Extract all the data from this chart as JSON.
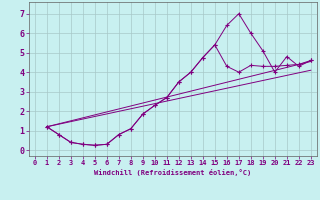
{
  "xlabel": "Windchill (Refroidissement éolien,°C)",
  "background_color": "#c8f0f0",
  "grid_color": "#a8c8c8",
  "line_color": "#800080",
  "xlim": [
    -0.5,
    23.5
  ],
  "ylim": [
    -0.3,
    7.6
  ],
  "xticks": [
    0,
    1,
    2,
    3,
    4,
    5,
    6,
    7,
    8,
    9,
    10,
    11,
    12,
    13,
    14,
    15,
    16,
    17,
    18,
    19,
    20,
    21,
    22,
    23
  ],
  "yticks": [
    0,
    1,
    2,
    3,
    4,
    5,
    6,
    7
  ],
  "series1_x": [
    1,
    2,
    3,
    4,
    5,
    6,
    7,
    8,
    9,
    10,
    11,
    12,
    13,
    14,
    15,
    16,
    17,
    18,
    19,
    20,
    21,
    22,
    23
  ],
  "series1_y": [
    1.2,
    0.8,
    0.4,
    0.3,
    0.25,
    0.3,
    0.8,
    1.1,
    1.85,
    2.3,
    2.7,
    3.5,
    4.0,
    4.75,
    5.4,
    6.4,
    7.0,
    6.0,
    5.1,
    4.0,
    4.8,
    4.3,
    4.6
  ],
  "series2_x": [
    1,
    2,
    3,
    4,
    5,
    6,
    7,
    8,
    9,
    10,
    11,
    12,
    13,
    14,
    15,
    16,
    17,
    18,
    19,
    20,
    21,
    22,
    23
  ],
  "series2_y": [
    1.2,
    0.8,
    0.4,
    0.3,
    0.25,
    0.3,
    0.8,
    1.1,
    1.85,
    2.3,
    2.7,
    3.5,
    4.0,
    4.75,
    5.4,
    4.3,
    4.0,
    4.35,
    4.3,
    4.3,
    4.35,
    4.4,
    4.6
  ],
  "line3_x": [
    1,
    23
  ],
  "line3_y": [
    1.2,
    4.55
  ],
  "line4_x": [
    1,
    23
  ],
  "line4_y": [
    1.2,
    4.1
  ]
}
